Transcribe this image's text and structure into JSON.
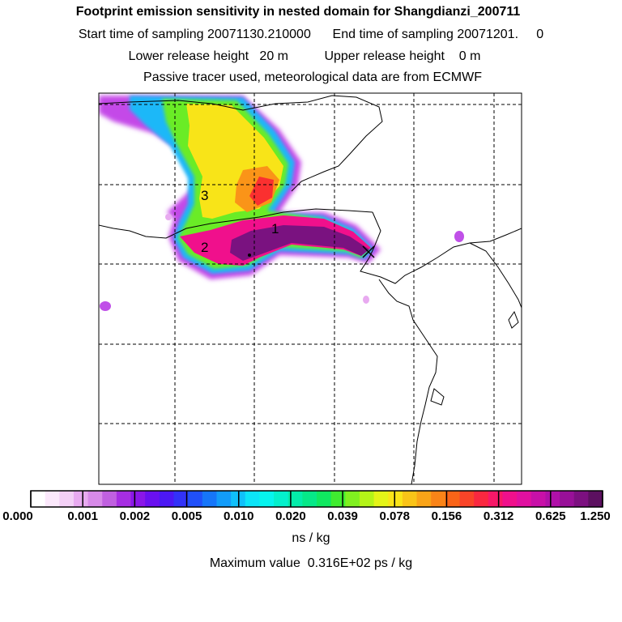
{
  "header": {
    "title": "Footprint emission sensitivity in nested domain for Shangdianzi_200711",
    "line2": "Start time of sampling 20071130.210000      End time of sampling 20071201.     0",
    "line3": "Lower release height   20 m          Upper release height    0 m",
    "line4": "Passive tracer used, meteorological data are from ECMWF"
  },
  "map": {
    "labels": [
      {
        "text": "1"
      },
      {
        "text": "2"
      },
      {
        "text": "3"
      }
    ],
    "grid": true
  },
  "colorbar": {
    "ticks": [
      "0.000",
      "0.001",
      "0.002",
      "0.005",
      "0.010",
      "0.020",
      "0.039",
      "0.078",
      "0.156",
      "0.312",
      "0.625",
      "1.250"
    ],
    "colors": [
      "#ffffff",
      "#fbe8fb",
      "#f3d0f6",
      "#e8aaf0",
      "#d78ae8",
      "#c060e0",
      "#a62ee2",
      "#8a16e8",
      "#6a10f0",
      "#4c18f4",
      "#3232f8",
      "#2050fa",
      "#1676fa",
      "#129cfa",
      "#10c0fa",
      "#0ce4f8",
      "#06f4ee",
      "#04f0cc",
      "#04ecaa",
      "#06e888",
      "#10e860",
      "#40ec30",
      "#80f020",
      "#b4f418",
      "#e4f418",
      "#fae418",
      "#fac418",
      "#faa418",
      "#fa8418",
      "#fa6418",
      "#fa4428",
      "#fa2840",
      "#f81868",
      "#f0108c",
      "#e010a0",
      "#c810a8",
      "#b010a8",
      "#981098",
      "#7c1080",
      "#5c1060"
    ],
    "units": "ns / kg",
    "max_value": "Maximum value  0.316E+02 ps / kg"
  },
  "colors": {
    "frame": "#000000",
    "grid": "#000000",
    "coast": "#000000"
  }
}
